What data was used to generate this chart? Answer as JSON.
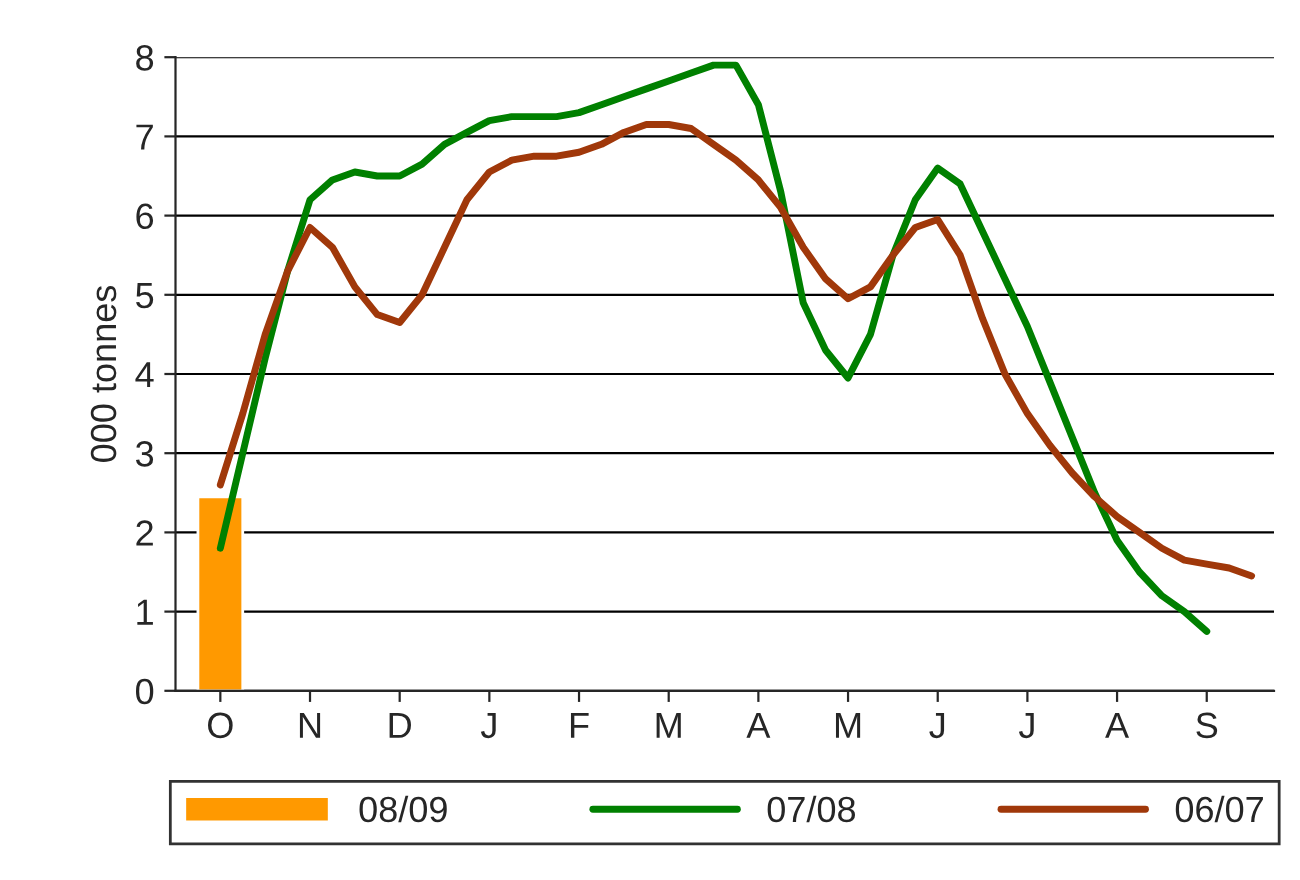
{
  "chart_data": {
    "type": "line",
    "ylabel": "000 tonnes",
    "categories": [
      "O",
      null,
      null,
      null,
      "N",
      null,
      null,
      null,
      "D",
      null,
      null,
      null,
      "J",
      null,
      null,
      null,
      "F",
      null,
      null,
      null,
      "M",
      null,
      null,
      null,
      "A",
      null,
      null,
      null,
      "M",
      null,
      null,
      null,
      "J",
      null,
      null,
      null,
      "J",
      null,
      null,
      null,
      "A",
      null,
      null,
      null,
      "S",
      null,
      null
    ],
    "ylim": [
      0,
      8
    ],
    "yticks": [
      0,
      1,
      2,
      3,
      4,
      5,
      6,
      7,
      8
    ],
    "grid": "y",
    "legend": "bottom",
    "marker": "none",
    "line_style": "solid",
    "series": [
      {
        "name": "08/09",
        "type": "bar",
        "color": "#ff9900",
        "values": [
          2.45,
          null,
          null,
          null,
          null,
          null,
          null,
          null,
          null,
          null,
          null,
          null,
          null,
          null,
          null,
          null,
          null,
          null,
          null,
          null,
          null,
          null,
          null,
          null,
          null,
          null,
          null,
          null,
          null,
          null,
          null,
          null,
          null,
          null,
          null,
          null,
          null,
          null,
          null,
          null,
          null,
          null,
          null,
          null,
          null,
          null,
          null
        ]
      },
      {
        "name": "07/08",
        "color": "#008000",
        "values": [
          1.8,
          3.0,
          4.2,
          5.3,
          6.2,
          6.45,
          6.55,
          6.5,
          6.5,
          6.65,
          6.9,
          7.05,
          7.2,
          7.25,
          7.25,
          7.25,
          7.3,
          7.4,
          7.5,
          7.6,
          7.7,
          7.8,
          7.9,
          7.9,
          7.4,
          6.3,
          4.9,
          4.3,
          3.95,
          4.5,
          5.5,
          6.2,
          6.6,
          6.4,
          5.8,
          5.2,
          4.6,
          3.9,
          3.2,
          2.5,
          1.9,
          1.5,
          1.2,
          1.0,
          0.75,
          null,
          null
        ]
      },
      {
        "name": "06/07",
        "color": "#a0380a",
        "values": [
          2.6,
          3.5,
          4.5,
          5.3,
          5.85,
          5.6,
          5.1,
          4.75,
          4.65,
          5.0,
          5.6,
          6.2,
          6.55,
          6.7,
          6.75,
          6.75,
          6.8,
          6.9,
          7.05,
          7.15,
          7.15,
          7.1,
          6.9,
          6.7,
          6.45,
          6.1,
          5.6,
          5.2,
          4.95,
          5.1,
          5.5,
          5.85,
          5.95,
          5.5,
          4.7,
          4.0,
          3.5,
          3.1,
          2.75,
          2.45,
          2.2,
          2.0,
          1.8,
          1.65,
          1.6,
          1.55,
          1.45
        ]
      }
    ]
  }
}
